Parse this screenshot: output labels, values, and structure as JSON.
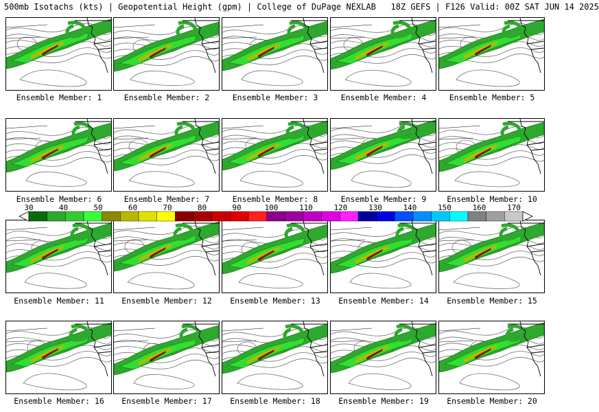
{
  "header": {
    "title": "500mb Isotachs (kts) | Geopotential Height (gpm) | College of DuPage NEXLAB   18Z GEFS | F126 Valid: 00Z SAT JUN 14 2025"
  },
  "members": [
    {
      "label": "Ensemble Member: 1"
    },
    {
      "label": "Ensemble Member: 2"
    },
    {
      "label": "Ensemble Member: 3"
    },
    {
      "label": "Ensemble Member: 4"
    },
    {
      "label": "Ensemble Member: 5"
    },
    {
      "label": "Ensemble Member: 6"
    },
    {
      "label": "Ensemble Member: 7"
    },
    {
      "label": "Ensemble Member: 8"
    },
    {
      "label": "Ensemble Member: 9"
    },
    {
      "label": "Ensemble Member: 10"
    },
    {
      "label": "Ensemble Member: 11"
    },
    {
      "label": "Ensemble Member: 12"
    },
    {
      "label": "Ensemble Member: 13"
    },
    {
      "label": "Ensemble Member: 14"
    },
    {
      "label": "Ensemble Member: 15"
    },
    {
      "label": "Ensemble Member: 16"
    },
    {
      "label": "Ensemble Member: 17"
    },
    {
      "label": "Ensemble Member: 18"
    },
    {
      "label": "Ensemble Member: 19"
    },
    {
      "label": "Ensemble Member: 20"
    }
  ],
  "colorbar": {
    "ticks": [
      "30",
      "40",
      "50",
      "60",
      "70",
      "80",
      "90",
      "100",
      "110",
      "120",
      "130",
      "140",
      "150",
      "160",
      "170"
    ],
    "colors": [
      "#0b6b0b",
      "#2ea82e",
      "#33cc33",
      "#39ff39",
      "#8a8a00",
      "#b8b800",
      "#e0e000",
      "#ffff00",
      "#8b0000",
      "#a80000",
      "#c80000",
      "#e00000",
      "#ff2020",
      "#8b008b",
      "#a000a0",
      "#c000c0",
      "#e000e0",
      "#ff20ff",
      "#0000a0",
      "#0000e0",
      "#0050ff",
      "#0090ff",
      "#00c8ff",
      "#00ffff",
      "#808080",
      "#a0a0a0",
      "#c8c8c8"
    ]
  },
  "colors": {
    "jet_outer": "#2ea82e",
    "jet_inner": "#33dd33",
    "jet_core_olive": "#b8b800",
    "jet_core_red": "#8b0000",
    "height_contour": "#707070",
    "coast": "#000000"
  }
}
